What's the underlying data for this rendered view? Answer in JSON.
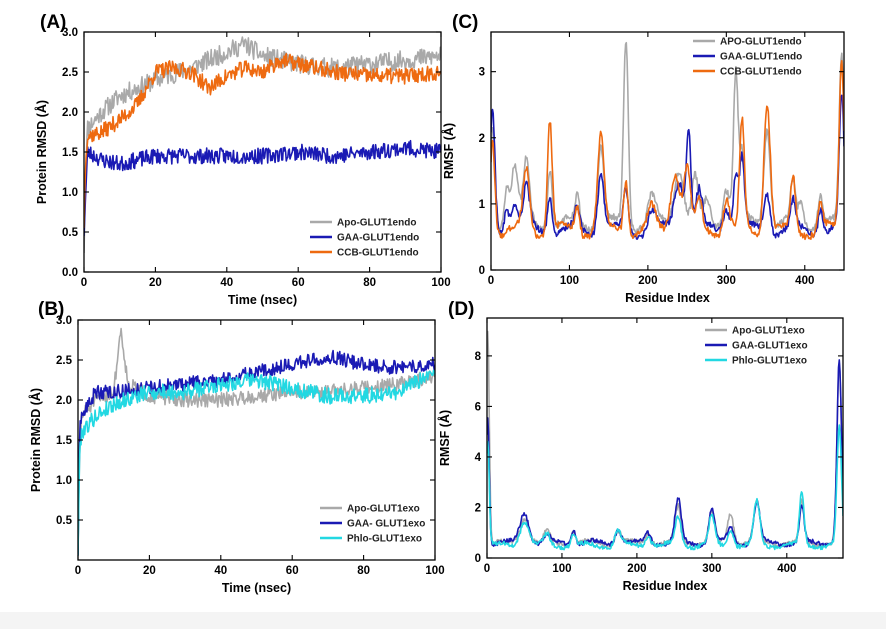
{
  "colors": {
    "apo": "#a9a9a9",
    "gaa": "#1a1ab4",
    "ccb": "#ee6a10",
    "phlo": "#22d8e2",
    "axis": "#000000"
  },
  "chart_data": [
    {
      "panel_label": "(A)",
      "type": "line",
      "title": "",
      "xlabel": "Time (nsec)",
      "ylabel": "Protein RMSD (Å)",
      "xlim": [
        0,
        100
      ],
      "ylim": [
        0,
        3.0
      ],
      "xticks": [
        0,
        20,
        40,
        60,
        80,
        100
      ],
      "xtick_labels": [
        "0",
        "20",
        "40",
        "60",
        "80",
        "100"
      ],
      "yticks": [
        0,
        0.5,
        1.0,
        1.5,
        2.0,
        2.5,
        3.0
      ],
      "ytick_labels": [
        "0.0",
        "0.5",
        "1.0",
        "1.5",
        "2.0",
        "2.5",
        "3.0"
      ],
      "legend_position": "bottom-right",
      "series": [
        {
          "name": "Apo-GLUT1endo",
          "color_key": "apo",
          "seed": 11,
          "noise": 0.12,
          "points": [
            [
              0,
              0.3
            ],
            [
              0.5,
              1.3
            ],
            [
              1,
              1.8
            ],
            [
              5,
              2.0
            ],
            [
              10,
              2.2
            ],
            [
              20,
              2.4
            ],
            [
              30,
              2.55
            ],
            [
              40,
              2.75
            ],
            [
              45,
              2.85
            ],
            [
              50,
              2.7
            ],
            [
              60,
              2.6
            ],
            [
              70,
              2.55
            ],
            [
              80,
              2.6
            ],
            [
              90,
              2.65
            ],
            [
              100,
              2.7
            ]
          ]
        },
        {
          "name": "GAA-GLUT1endo",
          "color_key": "gaa",
          "seed": 23,
          "noise": 0.1,
          "points": [
            [
              0,
              0.5
            ],
            [
              0.5,
              1.0
            ],
            [
              1,
              1.5
            ],
            [
              5,
              1.4
            ],
            [
              10,
              1.35
            ],
            [
              20,
              1.45
            ],
            [
              30,
              1.45
            ],
            [
              40,
              1.45
            ],
            [
              50,
              1.45
            ],
            [
              60,
              1.5
            ],
            [
              70,
              1.45
            ],
            [
              80,
              1.5
            ],
            [
              90,
              1.55
            ],
            [
              100,
              1.5
            ]
          ]
        },
        {
          "name": "CCB-GLUT1endo",
          "color_key": "ccb",
          "seed": 37,
          "noise": 0.1,
          "points": [
            [
              0,
              0.6
            ],
            [
              0.5,
              1.5
            ],
            [
              1,
              1.7
            ],
            [
              5,
              1.75
            ],
            [
              10,
              1.9
            ],
            [
              15,
              2.1
            ],
            [
              20,
              2.5
            ],
            [
              25,
              2.55
            ],
            [
              30,
              2.5
            ],
            [
              35,
              2.3
            ],
            [
              40,
              2.45
            ],
            [
              45,
              2.55
            ],
            [
              50,
              2.5
            ],
            [
              55,
              2.65
            ],
            [
              60,
              2.6
            ],
            [
              70,
              2.5
            ],
            [
              80,
              2.45
            ],
            [
              90,
              2.45
            ],
            [
              100,
              2.5
            ]
          ]
        }
      ]
    },
    {
      "panel_label": "(B)",
      "type": "line",
      "title": "",
      "xlabel": "Time (nsec)",
      "ylabel": "Protein RMSD (Å)",
      "xlim": [
        0,
        100
      ],
      "ylim": [
        0,
        3.0
      ],
      "xticks": [
        0,
        20,
        40,
        60,
        80,
        100
      ],
      "xtick_labels": [
        "0",
        "20",
        "40",
        "60",
        "80",
        "100"
      ],
      "yticks": [
        0.5,
        1.0,
        1.5,
        2.0,
        2.5,
        3.0
      ],
      "ytick_labels": [
        "0.5",
        "1.0",
        "1.5",
        "2.0",
        "2.5",
        "3.0"
      ],
      "legend_position": "bottom-right",
      "series": [
        {
          "name": "Apo-GLUT1exo",
          "color_key": "apo",
          "seed": 51,
          "noise": 0.09,
          "points": [
            [
              0,
              0.1
            ],
            [
              0.5,
              1.4
            ],
            [
              1,
              1.8
            ],
            [
              5,
              2.0
            ],
            [
              10,
              2.1
            ],
            [
              12,
              2.9
            ],
            [
              14,
              2.2
            ],
            [
              20,
              2.05
            ],
            [
              30,
              2.0
            ],
            [
              40,
              2.0
            ],
            [
              50,
              2.05
            ],
            [
              60,
              2.1
            ],
            [
              70,
              2.1
            ],
            [
              80,
              2.15
            ],
            [
              90,
              2.2
            ],
            [
              100,
              2.3
            ]
          ]
        },
        {
          "name": "GAA- GLUT1exo",
          "color_key": "gaa",
          "seed": 63,
          "noise": 0.09,
          "points": [
            [
              0,
              0.1
            ],
            [
              0.5,
              1.6
            ],
            [
              1,
              1.8
            ],
            [
              5,
              2.1
            ],
            [
              10,
              2.1
            ],
            [
              20,
              2.15
            ],
            [
              30,
              2.2
            ],
            [
              40,
              2.25
            ],
            [
              50,
              2.35
            ],
            [
              60,
              2.45
            ],
            [
              70,
              2.55
            ],
            [
              80,
              2.45
            ],
            [
              90,
              2.4
            ],
            [
              100,
              2.45
            ]
          ]
        },
        {
          "name": "Phlo-GLUT1exo",
          "color_key": "phlo",
          "seed": 79,
          "noise": 0.1,
          "points": [
            [
              0,
              0.1
            ],
            [
              0.5,
              1.4
            ],
            [
              1,
              1.6
            ],
            [
              5,
              1.8
            ],
            [
              10,
              1.95
            ],
            [
              20,
              2.1
            ],
            [
              30,
              2.1
            ],
            [
              40,
              2.2
            ],
            [
              50,
              2.25
            ],
            [
              60,
              2.15
            ],
            [
              70,
              2.05
            ],
            [
              80,
              2.05
            ],
            [
              90,
              2.1
            ],
            [
              100,
              2.35
            ]
          ]
        }
      ]
    },
    {
      "panel_label": "(C)",
      "type": "line",
      "title": "",
      "xlabel": "Residue Index",
      "ylabel": "RMSF (Å)",
      "xlim": [
        0,
        450
      ],
      "ylim": [
        0,
        3.6
      ],
      "xticks": [
        0,
        100,
        200,
        300,
        400
      ],
      "xtick_labels": [
        "0",
        "100",
        "200",
        "300",
        "400"
      ],
      "yticks": [
        0,
        1,
        2,
        3
      ],
      "ytick_labels": [
        "0",
        "1",
        "2",
        "3"
      ],
      "legend_position": "top-right",
      "series": [
        {
          "name": "APO-GLUT1endo",
          "color_key": "apo",
          "seed": 91,
          "noise": 0.05,
          "base": 0.7,
          "peaks": [
            [
              2,
              1.5,
              3
            ],
            [
              20,
              0.6,
              3
            ],
            [
              30,
              0.9,
              4
            ],
            [
              45,
              0.9,
              4
            ],
            [
              75,
              0.9,
              3
            ],
            [
              110,
              0.4,
              3
            ],
            [
              140,
              1.2,
              4
            ],
            [
              172,
              2.8,
              3
            ],
            [
              205,
              0.4,
              5
            ],
            [
              240,
              0.9,
              6
            ],
            [
              260,
              0.7,
              4
            ],
            [
              275,
              0.3,
              4
            ],
            [
              300,
              0.6,
              4
            ],
            [
              312,
              2.3,
              3
            ],
            [
              320,
              1.0,
              3
            ],
            [
              352,
              1.5,
              4
            ],
            [
              385,
              0.6,
              3
            ],
            [
              395,
              0.3,
              3
            ],
            [
              420,
              0.5,
              3
            ],
            [
              447,
              2.5,
              3
            ]
          ]
        },
        {
          "name": "GAA-GLUT1endo",
          "color_key": "gaa",
          "seed": 103,
          "noise": 0.05,
          "base": 0.6,
          "peaks": [
            [
              2,
              1.8,
              3
            ],
            [
              20,
              0.4,
              3
            ],
            [
              30,
              0.4,
              4
            ],
            [
              45,
              0.6,
              4
            ],
            [
              75,
              0.6,
              3
            ],
            [
              110,
              0.3,
              3
            ],
            [
              140,
              0.9,
              4
            ],
            [
              172,
              0.6,
              3
            ],
            [
              205,
              0.3,
              5
            ],
            [
              240,
              0.8,
              6
            ],
            [
              252,
              1.5,
              3
            ],
            [
              265,
              0.6,
              4
            ],
            [
              300,
              0.4,
              4
            ],
            [
              312,
              0.9,
              3
            ],
            [
              320,
              1.1,
              3
            ],
            [
              352,
              0.6,
              4
            ],
            [
              385,
              0.4,
              3
            ],
            [
              420,
              0.4,
              3
            ],
            [
              447,
              2.0,
              3
            ]
          ]
        },
        {
          "name": "CCB-GLUT1endo",
          "color_key": "ccb",
          "seed": 117,
          "noise": 0.05,
          "base": 0.6,
          "peaks": [
            [
              2,
              1.4,
              3
            ],
            [
              45,
              0.9,
              4
            ],
            [
              75,
              1.7,
              3
            ],
            [
              110,
              0.4,
              3
            ],
            [
              140,
              1.4,
              4
            ],
            [
              172,
              0.8,
              3
            ],
            [
              205,
              0.3,
              5
            ],
            [
              235,
              0.9,
              6
            ],
            [
              250,
              0.9,
              4
            ],
            [
              265,
              0.4,
              4
            ],
            [
              300,
              0.5,
              4
            ],
            [
              320,
              1.6,
              3
            ],
            [
              352,
              2.0,
              4
            ],
            [
              385,
              0.8,
              3
            ],
            [
              420,
              0.4,
              3
            ],
            [
              447,
              2.6,
              3
            ]
          ]
        }
      ]
    },
    {
      "panel_label": "(D)",
      "type": "line",
      "title": "",
      "xlabel": "Residue Index",
      "ylabel": "RMSF (Å)",
      "xlim": [
        0,
        475
      ],
      "ylim": [
        0,
        9.5
      ],
      "xticks": [
        0,
        100,
        200,
        300,
        400
      ],
      "xtick_labels": [
        "0",
        "100",
        "200",
        "300",
        "400"
      ],
      "yticks": [
        0,
        2,
        4,
        6,
        8
      ],
      "ytick_labels": [
        "0",
        "2",
        "4",
        "6",
        "8"
      ],
      "legend_position": "top-right",
      "series": [
        {
          "name": "Apo-GLUT1exo",
          "color_key": "apo",
          "seed": 131,
          "noise": 0.08,
          "base": 0.6,
          "peaks": [
            [
              1,
              8.5,
              2
            ],
            [
              50,
              1.0,
              6
            ],
            [
              80,
              0.4,
              4
            ],
            [
              115,
              0.5,
              3
            ],
            [
              175,
              0.5,
              4
            ],
            [
              215,
              0.4,
              4
            ],
            [
              255,
              1.4,
              4
            ],
            [
              300,
              1.2,
              4
            ],
            [
              325,
              1.2,
              4
            ],
            [
              360,
              1.6,
              4
            ],
            [
              420,
              1.6,
              3
            ],
            [
              470,
              7.0,
              3
            ]
          ]
        },
        {
          "name": "GAA-GLUT1exo",
          "color_key": "gaa",
          "seed": 149,
          "noise": 0.08,
          "base": 0.6,
          "peaks": [
            [
              1,
              5.0,
              2
            ],
            [
              50,
              1.2,
              6
            ],
            [
              80,
              0.3,
              4
            ],
            [
              115,
              0.6,
              3
            ],
            [
              175,
              0.6,
              4
            ],
            [
              215,
              0.4,
              4
            ],
            [
              255,
              1.7,
              4
            ],
            [
              300,
              1.3,
              4
            ],
            [
              325,
              0.6,
              4
            ],
            [
              360,
              1.6,
              4
            ],
            [
              420,
              1.4,
              3
            ],
            [
              470,
              7.2,
              3
            ]
          ]
        },
        {
          "name": "Phlo-GLUT1exo",
          "color_key": "phlo",
          "seed": 163,
          "noise": 0.08,
          "base": 0.5,
          "peaks": [
            [
              1,
              4.2,
              2
            ],
            [
              50,
              1.0,
              6
            ],
            [
              80,
              0.4,
              4
            ],
            [
              115,
              0.5,
              3
            ],
            [
              175,
              0.6,
              4
            ],
            [
              215,
              0.4,
              4
            ],
            [
              255,
              1.1,
              4
            ],
            [
              300,
              1.1,
              4
            ],
            [
              325,
              0.6,
              4
            ],
            [
              360,
              1.7,
              4
            ],
            [
              420,
              2.1,
              3
            ],
            [
              470,
              4.6,
              3
            ]
          ]
        }
      ]
    }
  ]
}
